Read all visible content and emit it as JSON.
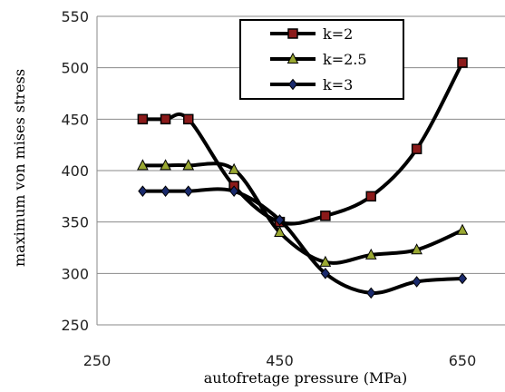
{
  "chart_data": {
    "type": "line",
    "title": "",
    "xlabel": "autofretage pressure (MPa)",
    "ylabel": "maximum von mises stress",
    "xlim": [
      250,
      650
    ],
    "ylim": [
      250,
      550
    ],
    "x_ticks": [
      250,
      450,
      650
    ],
    "y_ticks": [
      250,
      300,
      350,
      400,
      450,
      500,
      550
    ],
    "grid": "horizontal",
    "legend_position": "top-center",
    "x": [
      300,
      325,
      350,
      400,
      450,
      500,
      550,
      600,
      650
    ],
    "series": [
      {
        "name": "k=2",
        "marker": "square",
        "color": "#000000",
        "marker_fill": "#8b1a1a",
        "values": [
          450,
          450,
          450,
          385,
          350,
          356,
          375,
          421,
          505
        ]
      },
      {
        "name": "k=2.5",
        "marker": "triangle",
        "color": "#000000",
        "marker_fill": "#9aa832",
        "values": [
          405,
          405,
          405,
          401,
          340,
          311,
          318,
          323,
          342
        ]
      },
      {
        "name": "k=3",
        "marker": "diamond",
        "color": "#000000",
        "marker_fill": "#1a2a6c",
        "values": [
          380,
          380,
          380,
          380,
          352,
          300,
          281,
          292,
          295
        ]
      }
    ]
  }
}
